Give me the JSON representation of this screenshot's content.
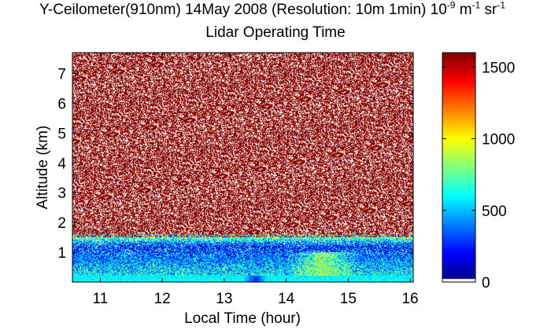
{
  "title": {
    "main": "Y-Ceilometer(910nm) 14May 2008 (Resolution: 10m 1min) 10",
    "exp1": "-9",
    "unit1": " m",
    "exp2": "-1",
    "unit2": " sr",
    "exp3": "-1",
    "subtitle": "Lidar Operating Time"
  },
  "chart_data": {
    "type": "heatmap",
    "title": "Y-Ceilometer(910nm) 14May 2008 (Resolution: 10m 1min) 10^-9 m^-1 sr^-1",
    "subtitle": "Lidar Operating Time",
    "xlabel": "Local Time (hour)",
    "ylabel": "Altitude (km)",
    "xlim": [
      10.55,
      16.05
    ],
    "ylim": [
      0,
      7.7
    ],
    "x_ticks": [
      11,
      12,
      13,
      14,
      15,
      16
    ],
    "y_ticks": [
      1,
      2,
      3,
      4,
      5,
      6,
      7
    ],
    "x_resolution": "1min",
    "y_resolution": "10m",
    "colorbar": {
      "colormap": "jet",
      "range": [
        0,
        1600
      ],
      "ticks": [
        0,
        500,
        1000,
        1500
      ]
    },
    "approx_profile": [
      {
        "altitude_km": 0.1,
        "value": 600
      },
      {
        "altitude_km": 0.4,
        "value": 550
      },
      {
        "altitude_km": 0.8,
        "value": 400
      },
      {
        "altitude_km": 1.2,
        "value": 250
      },
      {
        "altitude_km": 2.0,
        "value": 1600
      }
    ],
    "features": [
      {
        "x_range": [
          14.0,
          15.2
        ],
        "altitude_range_km": [
          0.2,
          1.0
        ],
        "value": 1000
      },
      {
        "x_range": [
          13.3,
          13.7
        ],
        "altitude_range_km": [
          0,
          0.2
        ],
        "value": 100
      }
    ]
  }
}
